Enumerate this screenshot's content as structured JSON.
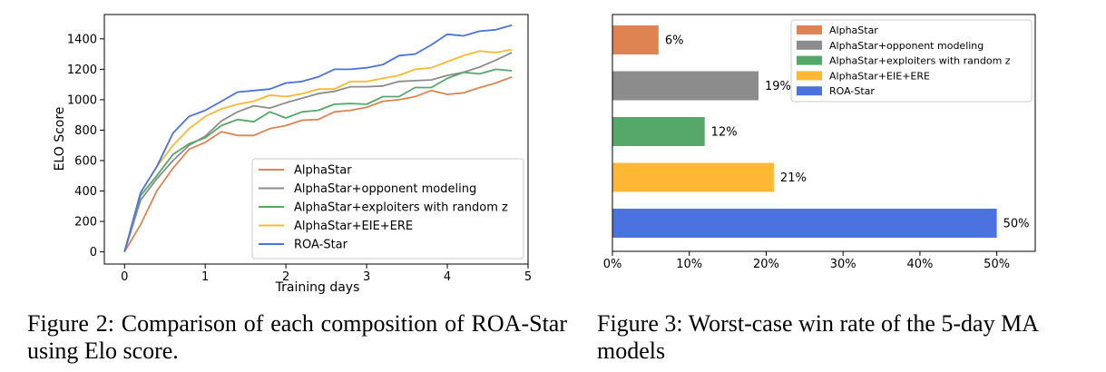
{
  "colors": {
    "alphastar": "#dd8452",
    "opponent_modeling": "#8c8c8c",
    "exploiters": "#55a868",
    "eie_ere": "#ffb833",
    "roa_star": "#4c72e0"
  },
  "captions": {
    "fig2": "Figure 2:  Comparison of each composition of ROA-Star using Elo score.",
    "fig3": "Figure 3: Worst-case win rate of the 5-day MA models"
  },
  "chart_data": [
    {
      "type": "line",
      "title": "",
      "xlabel": "Training days",
      "ylabel": "ELO Score",
      "xlim": [
        -0.25,
        5.0
      ],
      "ylim": [
        -80,
        1560
      ],
      "xticks": [
        0,
        1,
        2,
        3,
        4,
        5
      ],
      "yticks": [
        0,
        200,
        400,
        600,
        800,
        1000,
        1200,
        1400
      ],
      "grid": false,
      "legend_position": "lower-right",
      "x": [
        0,
        0.2,
        0.4,
        0.6,
        0.8,
        1.0,
        1.2,
        1.4,
        1.6,
        1.8,
        2.0,
        2.2,
        2.4,
        2.6,
        2.8,
        3.0,
        3.2,
        3.4,
        3.6,
        3.8,
        4.0,
        4.2,
        4.4,
        4.6,
        4.8
      ],
      "series": [
        {
          "name": "AlphaStar",
          "color_key": "alphastar",
          "values": [
            0,
            180,
            400,
            550,
            675,
            720,
            790,
            765,
            765,
            810,
            830,
            865,
            870,
            920,
            930,
            950,
            990,
            1000,
            1020,
            1060,
            1035,
            1045,
            1080,
            1110,
            1150
          ]
        },
        {
          "name": "AlphaStar+opponent modeling",
          "color_key": "opponent_modeling",
          "values": [
            0,
            340,
            480,
            600,
            700,
            760,
            860,
            920,
            960,
            945,
            980,
            1010,
            1040,
            1055,
            1085,
            1085,
            1090,
            1120,
            1125,
            1130,
            1160,
            1180,
            1215,
            1260,
            1310
          ]
        },
        {
          "name": "AlphaStar+exploiters with random z",
          "color_key": "exploiters",
          "values": [
            0,
            370,
            500,
            640,
            710,
            750,
            830,
            870,
            855,
            920,
            880,
            920,
            930,
            970,
            975,
            970,
            1020,
            1020,
            1080,
            1080,
            1140,
            1180,
            1170,
            1200,
            1190
          ]
        },
        {
          "name": "AlphaStar+EIE+ERE",
          "color_key": "eie_ere",
          "values": [
            0,
            390,
            560,
            700,
            810,
            890,
            940,
            970,
            990,
            1030,
            1020,
            1040,
            1070,
            1070,
            1120,
            1120,
            1140,
            1160,
            1200,
            1210,
            1250,
            1290,
            1320,
            1310,
            1330
          ]
        },
        {
          "name": "ROA-Star",
          "color_key": "roa_star",
          "values": [
            0,
            390,
            560,
            780,
            890,
            930,
            990,
            1050,
            1060,
            1070,
            1110,
            1120,
            1150,
            1200,
            1200,
            1210,
            1230,
            1290,
            1300,
            1360,
            1430,
            1420,
            1450,
            1460,
            1490
          ]
        }
      ]
    },
    {
      "type": "bar",
      "orientation": "horizontal",
      "title": "",
      "xlim": [
        0,
        55
      ],
      "xticks": [
        0,
        10,
        20,
        30,
        40,
        50
      ],
      "xtick_labels": [
        "0%",
        "10%",
        "20%",
        "30%",
        "40%",
        "50%"
      ],
      "grid": false,
      "legend_position": "top-right",
      "categories": [
        "AlphaStar",
        "AlphaStar+opponent modeling",
        "AlphaStar+exploiters with random z",
        "AlphaStar+EIE+ERE",
        "ROA-Star"
      ],
      "values": [
        6,
        19,
        12,
        21,
        50
      ],
      "value_labels": [
        "6%",
        "19%",
        "12%",
        "21%",
        "50%"
      ],
      "color_keys": [
        "alphastar",
        "opponent_modeling",
        "exploiters",
        "eie_ere",
        "roa_star"
      ]
    }
  ]
}
